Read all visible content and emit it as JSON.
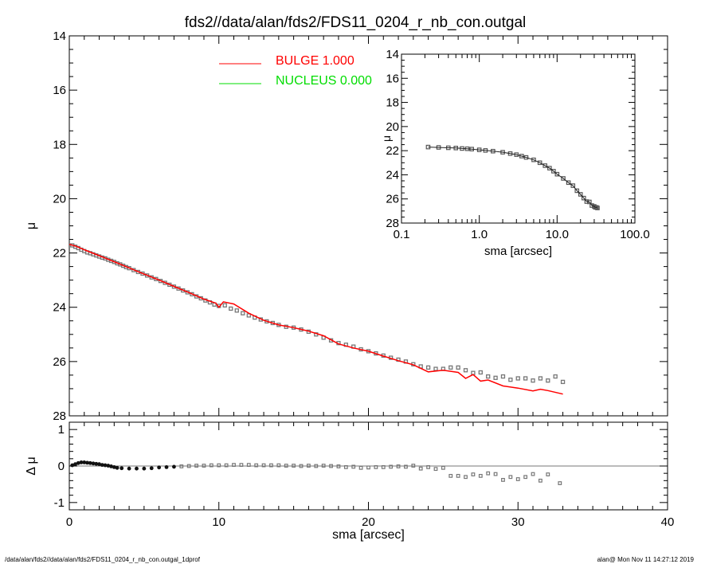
{
  "title": "fds2//data/alan/fds2/FDS11_0204_r_nb_con.outgal",
  "footer": {
    "left": "/data/alan/fds2//data/alan/fds2/FDS11_0204_r_nb_con.outgal_1dprof",
    "right": "alan@  Mon Nov 11 14:27:12 2019"
  },
  "colors": {
    "bulge": "#ff0000",
    "nucleus": "#00dd00",
    "data": "#777777"
  },
  "chart_data": [
    {
      "id": "main",
      "type": "scatter",
      "xlabel": "",
      "ylabel": "μ",
      "xlim": [
        0,
        40
      ],
      "ylim": [
        28,
        14
      ],
      "yticks": [
        14,
        16,
        18,
        20,
        22,
        24,
        26,
        28
      ],
      "legend": [
        {
          "name": "BULGE",
          "value": "1.000",
          "color": "#ff0000"
        },
        {
          "name": "NUCLEUS",
          "value": "0.000",
          "color": "#00dd00"
        }
      ],
      "legend_placement": "top-center",
      "data_points": [
        [
          0.2,
          21.72
        ],
        [
          0.4,
          21.77
        ],
        [
          0.6,
          21.82
        ],
        [
          0.8,
          21.88
        ],
        [
          1.0,
          21.93
        ],
        [
          1.2,
          21.98
        ],
        [
          1.4,
          22.01
        ],
        [
          1.6,
          22.05
        ],
        [
          1.8,
          22.09
        ],
        [
          2.0,
          22.13
        ],
        [
          2.2,
          22.17
        ],
        [
          2.4,
          22.2
        ],
        [
          2.6,
          22.25
        ],
        [
          2.8,
          22.29
        ],
        [
          3.0,
          22.33
        ],
        [
          3.2,
          22.38
        ],
        [
          3.4,
          22.42
        ],
        [
          3.6,
          22.47
        ],
        [
          3.8,
          22.52
        ],
        [
          4.0,
          22.56
        ],
        [
          4.3,
          22.63
        ],
        [
          4.6,
          22.7
        ],
        [
          4.9,
          22.76
        ],
        [
          5.2,
          22.83
        ],
        [
          5.5,
          22.9
        ],
        [
          5.8,
          22.96
        ],
        [
          6.1,
          23.03
        ],
        [
          6.4,
          23.1
        ],
        [
          6.7,
          23.17
        ],
        [
          7.0,
          23.24
        ],
        [
          7.3,
          23.31
        ],
        [
          7.6,
          23.38
        ],
        [
          7.9,
          23.45
        ],
        [
          8.2,
          23.52
        ],
        [
          8.5,
          23.6
        ],
        [
          8.8,
          23.67
        ],
        [
          9.1,
          23.75
        ],
        [
          9.4,
          23.82
        ],
        [
          9.7,
          23.9
        ],
        [
          10.0,
          23.95
        ],
        [
          10.4,
          23.93
        ],
        [
          10.8,
          24.05
        ],
        [
          11.2,
          24.12
        ],
        [
          11.6,
          24.22
        ],
        [
          12.0,
          24.3
        ],
        [
          12.4,
          24.38
        ],
        [
          12.8,
          24.45
        ],
        [
          13.2,
          24.52
        ],
        [
          13.6,
          24.58
        ],
        [
          14.0,
          24.65
        ],
        [
          14.5,
          24.72
        ],
        [
          15.0,
          24.75
        ],
        [
          15.5,
          24.82
        ],
        [
          16.0,
          24.9
        ],
        [
          16.5,
          25.0
        ],
        [
          17.0,
          25.12
        ],
        [
          17.5,
          25.22
        ],
        [
          18.0,
          25.32
        ],
        [
          18.5,
          25.38
        ],
        [
          19.0,
          25.45
        ],
        [
          19.5,
          25.55
        ],
        [
          20.0,
          25.62
        ],
        [
          20.5,
          25.7
        ],
        [
          21.0,
          25.78
        ],
        [
          21.5,
          25.86
        ],
        [
          22.0,
          25.93
        ],
        [
          22.5,
          26.0
        ],
        [
          23.0,
          26.1
        ],
        [
          23.5,
          26.18
        ],
        [
          24.0,
          26.22
        ],
        [
          24.5,
          26.27
        ],
        [
          25.0,
          26.27
        ],
        [
          25.5,
          26.22
        ],
        [
          26.0,
          26.22
        ],
        [
          26.5,
          26.32
        ],
        [
          27.0,
          26.42
        ],
        [
          27.5,
          26.4
        ],
        [
          28.0,
          26.55
        ],
        [
          28.5,
          26.6
        ],
        [
          29.0,
          26.55
        ],
        [
          29.5,
          26.67
        ],
        [
          30.0,
          26.62
        ],
        [
          30.5,
          26.62
        ],
        [
          31.0,
          26.7
        ],
        [
          31.5,
          26.62
        ],
        [
          32.0,
          26.7
        ],
        [
          32.5,
          26.55
        ],
        [
          33.0,
          26.75
        ]
      ],
      "bulge_model": [
        [
          0.0,
          21.68
        ],
        [
          0.5,
          21.76
        ],
        [
          1.0,
          21.88
        ],
        [
          2.0,
          22.1
        ],
        [
          3.0,
          22.32
        ],
        [
          4.0,
          22.55
        ],
        [
          5.0,
          22.78
        ],
        [
          6.0,
          23.0
        ],
        [
          7.0,
          23.23
        ],
        [
          8.0,
          23.46
        ],
        [
          9.0,
          23.7
        ],
        [
          9.8,
          23.85
        ],
        [
          10.0,
          24.0
        ],
        [
          10.3,
          23.8
        ],
        [
          11.0,
          23.88
        ],
        [
          12.0,
          24.22
        ],
        [
          13.0,
          24.48
        ],
        [
          14.0,
          24.65
        ],
        [
          15.0,
          24.75
        ],
        [
          16.0,
          24.88
        ],
        [
          17.0,
          25.05
        ],
        [
          18.0,
          25.35
        ],
        [
          19.0,
          25.5
        ],
        [
          20.0,
          25.62
        ],
        [
          21.0,
          25.8
        ],
        [
          22.0,
          25.97
        ],
        [
          23.0,
          26.12
        ],
        [
          24.0,
          26.38
        ],
        [
          25.0,
          26.32
        ],
        [
          26.0,
          26.4
        ],
        [
          26.5,
          26.62
        ],
        [
          27.0,
          26.48
        ],
        [
          27.5,
          26.72
        ],
        [
          28.0,
          26.68
        ],
        [
          29.0,
          26.9
        ],
        [
          30.0,
          26.98
        ],
        [
          31.0,
          27.08
        ],
        [
          31.5,
          27.02
        ],
        [
          32.0,
          27.07
        ],
        [
          33.0,
          27.2
        ]
      ]
    },
    {
      "id": "inset",
      "type": "scatter",
      "xscale": "log",
      "xlabel": "sma [arcsec]",
      "ylabel": "μ",
      "xlim": [
        0.1,
        100
      ],
      "xticks": [
        0.1,
        1.0,
        10.0,
        100.0
      ],
      "xtick_labels": [
        "0.1",
        "1.0",
        "10.0",
        "100.0"
      ],
      "ylim": [
        28,
        14
      ],
      "yticks": [
        14,
        16,
        18,
        20,
        22,
        24,
        26,
        28
      ],
      "points": [
        [
          0.22,
          21.7
        ],
        [
          0.3,
          21.73
        ],
        [
          0.4,
          21.76
        ],
        [
          0.5,
          21.78
        ],
        [
          0.6,
          21.82
        ],
        [
          0.7,
          21.84
        ],
        [
          0.8,
          21.87
        ],
        [
          1.0,
          21.93
        ],
        [
          1.2,
          21.98
        ],
        [
          1.5,
          22.04
        ],
        [
          2.0,
          22.13
        ],
        [
          2.5,
          22.24
        ],
        [
          3.0,
          22.33
        ],
        [
          3.5,
          22.45
        ],
        [
          4.0,
          22.56
        ],
        [
          5.0,
          22.76
        ],
        [
          6.0,
          23.0
        ],
        [
          7.0,
          23.24
        ],
        [
          8.0,
          23.45
        ],
        [
          9.0,
          23.7
        ],
        [
          10.0,
          23.95
        ],
        [
          12.0,
          24.3
        ],
        [
          14.0,
          24.65
        ],
        [
          16.0,
          24.9
        ],
        [
          18.0,
          25.32
        ],
        [
          20.0,
          25.62
        ],
        [
          22.0,
          25.93
        ],
        [
          24.0,
          26.22
        ],
        [
          26.0,
          26.25
        ],
        [
          28.0,
          26.55
        ],
        [
          30.0,
          26.62
        ],
        [
          31.0,
          26.7
        ],
        [
          32.0,
          26.7
        ],
        [
          33.0,
          26.75
        ]
      ]
    },
    {
      "id": "residual",
      "type": "scatter",
      "xlabel": "sma [arcsec]",
      "ylabel": "Δ μ",
      "xlim": [
        0,
        40
      ],
      "xticks": [
        0,
        10,
        20,
        30,
        40
      ],
      "ylim": [
        -1.2,
        1.2
      ],
      "yticks": [
        1,
        0,
        -1
      ],
      "points": [
        [
          0.2,
          0.02
        ],
        [
          0.4,
          0.05
        ],
        [
          0.6,
          0.08
        ],
        [
          0.8,
          0.1
        ],
        [
          1.0,
          0.1
        ],
        [
          1.2,
          0.09
        ],
        [
          1.4,
          0.08
        ],
        [
          1.6,
          0.07
        ],
        [
          1.8,
          0.06
        ],
        [
          2.0,
          0.05
        ],
        [
          2.2,
          0.03
        ],
        [
          2.4,
          0.02
        ],
        [
          2.6,
          0.01
        ],
        [
          2.8,
          -0.01
        ],
        [
          3.0,
          -0.03
        ],
        [
          3.2,
          -0.05
        ],
        [
          3.5,
          -0.06
        ],
        [
          4.0,
          -0.07
        ],
        [
          4.5,
          -0.07
        ],
        [
          5.0,
          -0.07
        ],
        [
          5.5,
          -0.06
        ],
        [
          6.0,
          -0.04
        ],
        [
          6.5,
          -0.03
        ],
        [
          7.0,
          -0.02
        ],
        [
          7.5,
          -0.01
        ],
        [
          8.0,
          0.0
        ],
        [
          8.5,
          0.01
        ],
        [
          9.0,
          0.01
        ],
        [
          9.5,
          0.02
        ],
        [
          10.0,
          0.02
        ],
        [
          10.5,
          0.02
        ],
        [
          11.0,
          0.03
        ],
        [
          11.5,
          0.03
        ],
        [
          12.0,
          0.03
        ],
        [
          12.5,
          0.02
        ],
        [
          13.0,
          0.02
        ],
        [
          13.5,
          0.02
        ],
        [
          14.0,
          0.02
        ],
        [
          14.5,
          0.01
        ],
        [
          15.0,
          0.01
        ],
        [
          15.5,
          0.0
        ],
        [
          16.0,
          0.01
        ],
        [
          16.5,
          0.0
        ],
        [
          17.0,
          0.01
        ],
        [
          17.5,
          0.0
        ],
        [
          18.0,
          -0.01
        ],
        [
          18.5,
          -0.03
        ],
        [
          19.0,
          -0.02
        ],
        [
          19.5,
          -0.05
        ],
        [
          20.0,
          -0.04
        ],
        [
          20.5,
          -0.03
        ],
        [
          21.0,
          -0.03
        ],
        [
          21.5,
          -0.02
        ],
        [
          22.0,
          -0.01
        ],
        [
          22.5,
          -0.02
        ],
        [
          23.0,
          0.01
        ],
        [
          23.5,
          -0.07
        ],
        [
          24.0,
          -0.03
        ],
        [
          24.5,
          -0.08
        ],
        [
          25.0,
          -0.05
        ],
        [
          25.5,
          -0.27
        ],
        [
          26.0,
          -0.27
        ],
        [
          26.5,
          -0.3
        ],
        [
          27.0,
          -0.23
        ],
        [
          27.5,
          -0.27
        ],
        [
          28.0,
          -0.2
        ],
        [
          28.5,
          -0.22
        ],
        [
          29.0,
          -0.38
        ],
        [
          29.5,
          -0.3
        ],
        [
          30.0,
          -0.36
        ],
        [
          30.5,
          -0.3
        ],
        [
          31.0,
          -0.22
        ],
        [
          31.5,
          -0.4
        ],
        [
          32.0,
          -0.23
        ],
        [
          32.8,
          -0.47
        ]
      ]
    }
  ]
}
